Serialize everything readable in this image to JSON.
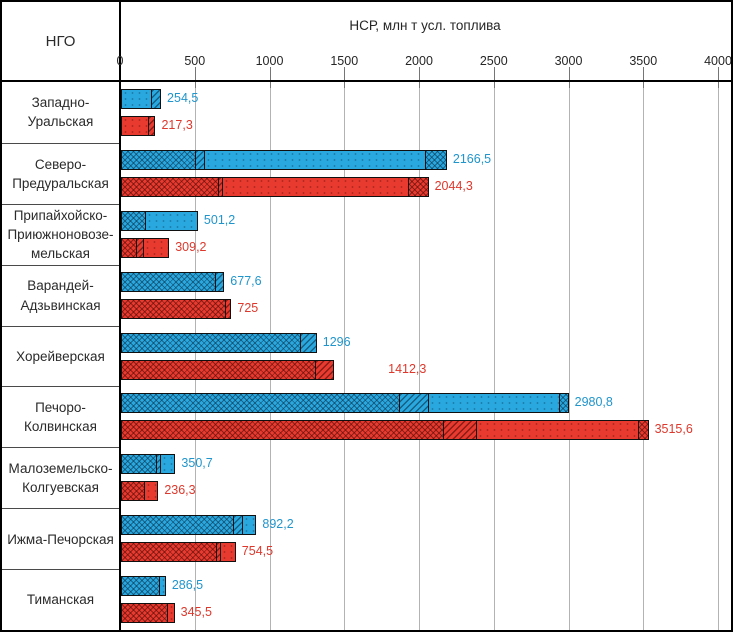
{
  "header": {
    "ngo_label": "НГО",
    "axis_title": "НСР, млн т усл. топлива"
  },
  "colors": {
    "blue_bar": "#29A8E0",
    "red_bar": "#E83A2E",
    "blue_text": "#2095CC",
    "red_text": "#DE382C",
    "gridline": "#b3b3b3"
  },
  "chart_data": {
    "type": "bar",
    "orientation": "horizontal",
    "title": "НСР, млн т усл. топлива",
    "xlabel": "НСР, млн т усл. топлива",
    "ylabel": "НГО",
    "xlim": [
      0,
      4000
    ],
    "xticks": [
      0,
      500,
      1000,
      1500,
      2000,
      2500,
      3000,
      3500,
      4000
    ],
    "grid": true,
    "series": [
      {
        "name": "blue",
        "color": "#29A8E0"
      },
      {
        "name": "red",
        "color": "#E83A2E"
      }
    ],
    "categories": [
      {
        "label_lines": "Западно-\nУральская",
        "bars": [
          {
            "series": "blue",
            "value": 254.5,
            "label": "254,5",
            "segments": [
              [
                "dots",
                195
              ],
              [
                "diag",
                59.5
              ]
            ]
          },
          {
            "series": "red",
            "value": 217.3,
            "label": "217,3",
            "segments": [
              [
                "dots",
                175
              ],
              [
                "diag",
                42.3
              ]
            ]
          }
        ]
      },
      {
        "label_lines": "Северо-\nПредуральская",
        "bars": [
          {
            "series": "blue",
            "value": 2166.5,
            "label": "2166,5",
            "segments": [
              [
                "cross",
                490
              ],
              [
                "diag",
                60
              ],
              [
                "dots",
                1480
              ],
              [
                "cross",
                136.5
              ]
            ]
          },
          {
            "series": "red",
            "value": 2044.3,
            "label": "2044,3",
            "segments": [
              [
                "cross",
                640
              ],
              [
                "diag",
                30
              ],
              [
                "dots",
                1245
              ],
              [
                "cross",
                129.3
              ]
            ]
          }
        ]
      },
      {
        "label_lines": "Припайхойско-\nПриюжноновозе-\nмельская",
        "bars": [
          {
            "series": "blue",
            "value": 501.2,
            "label": "501,2",
            "segments": [
              [
                "cross",
                155
              ],
              [
                "dots",
                346.2
              ]
            ]
          },
          {
            "series": "red",
            "value": 309.2,
            "label": "309,2",
            "segments": [
              [
                "cross",
                95
              ],
              [
                "diag",
                45
              ],
              [
                "dots",
                169.2
              ]
            ]
          }
        ]
      },
      {
        "label_lines": "Варандей-\nАдзьвинская",
        "bars": [
          {
            "series": "blue",
            "value": 677.6,
            "label": "677,6",
            "segments": [
              [
                "cross",
                620
              ],
              [
                "diag",
                57.6
              ]
            ]
          },
          {
            "series": "red",
            "value": 725,
            "label": "725",
            "segments": [
              [
                "cross",
                690
              ],
              [
                "diag",
                35
              ]
            ]
          }
        ]
      },
      {
        "label_lines": "Хорейверская",
        "bars": [
          {
            "series": "blue",
            "value": 1296,
            "label": "1296",
            "segments": [
              [
                "cross",
                1190
              ],
              [
                "diag",
                106
              ]
            ]
          },
          {
            "series": "red",
            "value": 1412.3,
            "label": "1412,3",
            "label_dx": 48,
            "segments": [
              [
                "cross",
                1290
              ],
              [
                "diag",
                122.3
              ]
            ]
          }
        ]
      },
      {
        "label_lines": "Печоро-\nКолвинская",
        "bars": [
          {
            "series": "blue",
            "value": 2980.8,
            "label": "2980,8",
            "segments": [
              [
                "cross",
                1855
              ],
              [
                "diag",
                195
              ],
              [
                "dots",
                870
              ],
              [
                "cross",
                60.8
              ]
            ]
          },
          {
            "series": "red",
            "value": 3515.6,
            "label": "3515,6",
            "segments": [
              [
                "cross",
                2150
              ],
              [
                "diag",
                220
              ],
              [
                "dots",
                1080
              ],
              [
                "cross",
                65.6
              ]
            ]
          }
        ]
      },
      {
        "label_lines": "Малоземельско-\nКолгуевская",
        "bars": [
          {
            "series": "blue",
            "value": 350.7,
            "label": "350,7",
            "segments": [
              [
                "cross",
                225
              ],
              [
                "diag",
                30
              ],
              [
                "dots",
                95.7
              ]
            ]
          },
          {
            "series": "red",
            "value": 236.3,
            "label": "236,3",
            "segments": [
              [
                "cross",
                150
              ],
              [
                "dots",
                86.3
              ]
            ]
          }
        ]
      },
      {
        "label_lines": "Ижма-Печорская",
        "bars": [
          {
            "series": "blue",
            "value": 892.2,
            "label": "892,2",
            "segments": [
              [
                "cross",
                745
              ],
              [
                "diag",
                60
              ],
              [
                "dots",
                87.2
              ]
            ]
          },
          {
            "series": "red",
            "value": 754.5,
            "label": "754,5",
            "segments": [
              [
                "cross",
                630
              ],
              [
                "diag",
                25
              ],
              [
                "dots",
                99.5
              ]
            ]
          }
        ]
      },
      {
        "label_lines": "Тиманская",
        "bars": [
          {
            "series": "blue",
            "value": 286.5,
            "label": "286,5",
            "segments": [
              [
                "cross",
                250
              ],
              [
                "dots",
                36.5
              ]
            ]
          },
          {
            "series": "red",
            "value": 345.5,
            "label": "345,5",
            "segments": [
              [
                "cross",
                300
              ],
              [
                "dots",
                45.5
              ]
            ]
          }
        ]
      }
    ]
  }
}
